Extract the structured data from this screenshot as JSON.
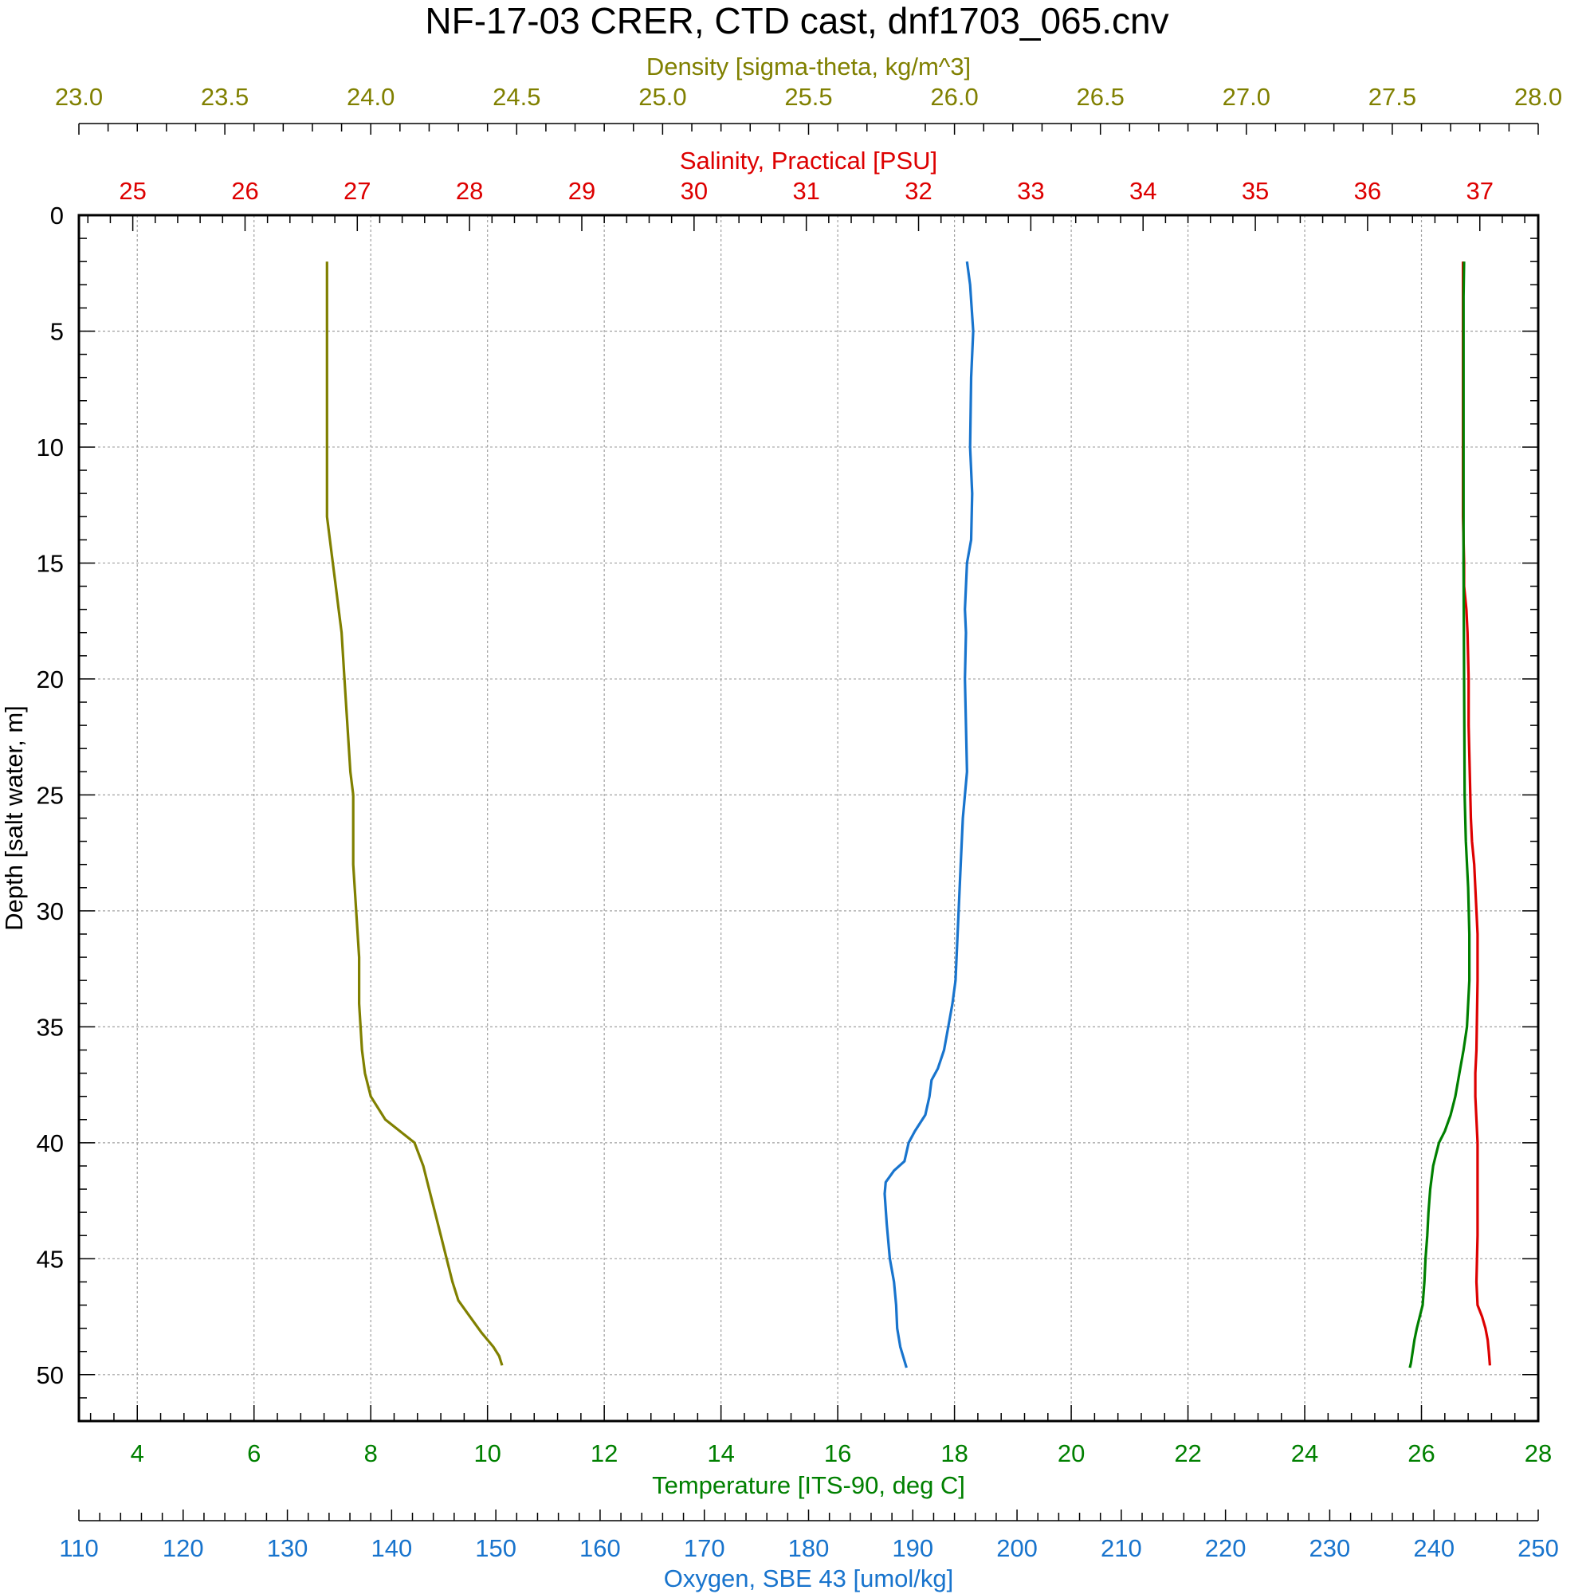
{
  "chart_data": {
    "type": "line",
    "title": "NF-17-03 CRER, CTD cast, dnf1703_065.cnv",
    "grid": true,
    "y_axis": {
      "label": "Depth [salt water, m]",
      "range": [
        0,
        52
      ],
      "inverted": true,
      "ticks": [
        0,
        5,
        10,
        15,
        20,
        25,
        30,
        35,
        40,
        45,
        50
      ]
    },
    "colors": {
      "density": "#808000",
      "salinity": "#dd0000",
      "temperature": "#008000",
      "oxygen": "#1874cd",
      "frame": "#000000",
      "grid": "#a0a0a0"
    },
    "axes": [
      {
        "key": "density",
        "label": "Density [sigma-theta, kg/m^3]",
        "position": "top-outer",
        "range": [
          23.0,
          28.0
        ],
        "ticks": [
          "23.0",
          "23.5",
          "24.0",
          "24.5",
          "25.0",
          "25.5",
          "26.0",
          "26.5",
          "27.0",
          "27.5",
          "28.0"
        ]
      },
      {
        "key": "salinity",
        "label": "Salinity, Practical [PSU]",
        "position": "top-inner",
        "range": [
          24.52,
          37.52
        ],
        "ticks": [
          "25",
          "26",
          "27",
          "28",
          "29",
          "30",
          "31",
          "32",
          "33",
          "34",
          "35",
          "36",
          "37"
        ]
      },
      {
        "key": "temperature",
        "label": "Temperature [ITS-90, deg C]",
        "position": "bottom-inner",
        "range": [
          3,
          28
        ],
        "ticks": [
          "4",
          "6",
          "8",
          "10",
          "12",
          "14",
          "16",
          "18",
          "20",
          "22",
          "24",
          "26",
          "28"
        ]
      },
      {
        "key": "oxygen",
        "label": "Oxygen, SBE 43 [umol/kg]",
        "position": "bottom-outer",
        "range": [
          110,
          250
        ],
        "ticks": [
          "110",
          "120",
          "130",
          "140",
          "150",
          "160",
          "170",
          "180",
          "190",
          "200",
          "210",
          "220",
          "230",
          "240",
          "250"
        ]
      }
    ],
    "series": [
      {
        "key": "density",
        "points": [
          [
            23.85,
            2
          ],
          [
            23.85,
            5
          ],
          [
            23.85,
            10
          ],
          [
            23.85,
            13
          ],
          [
            23.87,
            15
          ],
          [
            23.88,
            16
          ],
          [
            23.89,
            17
          ],
          [
            23.9,
            18
          ],
          [
            23.91,
            20
          ],
          [
            23.92,
            22
          ],
          [
            23.93,
            24
          ],
          [
            23.94,
            25
          ],
          [
            23.94,
            28
          ],
          [
            23.95,
            30
          ],
          [
            23.96,
            32
          ],
          [
            23.96,
            34
          ],
          [
            23.97,
            36
          ],
          [
            23.98,
            37
          ],
          [
            24.0,
            38
          ],
          [
            24.05,
            39
          ],
          [
            24.1,
            39.5
          ],
          [
            24.15,
            40
          ],
          [
            24.18,
            41
          ],
          [
            24.2,
            42
          ],
          [
            24.22,
            43
          ],
          [
            24.24,
            44
          ],
          [
            24.26,
            45
          ],
          [
            24.28,
            46
          ],
          [
            24.3,
            46.8
          ],
          [
            24.34,
            47.5
          ],
          [
            24.38,
            48.2
          ],
          [
            24.42,
            48.8
          ],
          [
            24.44,
            49.2
          ],
          [
            24.45,
            49.6
          ]
        ]
      },
      {
        "key": "salinity",
        "points": [
          [
            36.85,
            2
          ],
          [
            36.85,
            5
          ],
          [
            36.85,
            10
          ],
          [
            36.85,
            13
          ],
          [
            36.86,
            15
          ],
          [
            36.86,
            16
          ],
          [
            36.88,
            17
          ],
          [
            36.89,
            18
          ],
          [
            36.9,
            20
          ],
          [
            36.9,
            22
          ],
          [
            36.91,
            24
          ],
          [
            36.92,
            26
          ],
          [
            36.93,
            27
          ],
          [
            36.95,
            28
          ],
          [
            36.97,
            30
          ],
          [
            36.98,
            31
          ],
          [
            36.98,
            33
          ],
          [
            36.97,
            36
          ],
          [
            36.96,
            37
          ],
          [
            36.96,
            38
          ],
          [
            36.97,
            39
          ],
          [
            36.98,
            40
          ],
          [
            36.98,
            42
          ],
          [
            36.98,
            44
          ],
          [
            36.97,
            46
          ],
          [
            36.98,
            47
          ],
          [
            37.02,
            47.5
          ],
          [
            37.05,
            48
          ],
          [
            37.07,
            48.5
          ],
          [
            37.08,
            49
          ],
          [
            37.09,
            49.6
          ]
        ]
      },
      {
        "key": "temperature",
        "points": [
          [
            26.73,
            2
          ],
          [
            26.72,
            3.5
          ],
          [
            26.72,
            5
          ],
          [
            26.72,
            10
          ],
          [
            26.72,
            15
          ],
          [
            26.73,
            20
          ],
          [
            26.74,
            25
          ],
          [
            26.76,
            27
          ],
          [
            26.8,
            29
          ],
          [
            26.82,
            31
          ],
          [
            26.82,
            33
          ],
          [
            26.78,
            35
          ],
          [
            26.72,
            36
          ],
          [
            26.65,
            37
          ],
          [
            26.58,
            38
          ],
          [
            26.5,
            38.8
          ],
          [
            26.4,
            39.5
          ],
          [
            26.3,
            40
          ],
          [
            26.25,
            40.5
          ],
          [
            26.2,
            41
          ],
          [
            26.15,
            42
          ],
          [
            26.12,
            43
          ],
          [
            26.1,
            44
          ],
          [
            26.07,
            45
          ],
          [
            26.05,
            46
          ],
          [
            26.02,
            47
          ],
          [
            25.97,
            47.5
          ],
          [
            25.92,
            48
          ],
          [
            25.88,
            48.5
          ],
          [
            25.85,
            49
          ],
          [
            25.82,
            49.5
          ],
          [
            25.8,
            49.7
          ]
        ]
      },
      {
        "key": "oxygen",
        "points": [
          [
            195.2,
            2
          ],
          [
            195.5,
            3
          ],
          [
            195.8,
            5
          ],
          [
            195.6,
            7
          ],
          [
            195.5,
            10
          ],
          [
            195.7,
            12
          ],
          [
            195.6,
            14
          ],
          [
            195.2,
            15
          ],
          [
            195.0,
            17
          ],
          [
            195.1,
            18
          ],
          [
            195.0,
            20
          ],
          [
            195.1,
            22
          ],
          [
            195.2,
            24
          ],
          [
            194.8,
            26
          ],
          [
            194.6,
            28
          ],
          [
            194.4,
            30
          ],
          [
            194.2,
            32
          ],
          [
            194.1,
            33
          ],
          [
            193.8,
            34
          ],
          [
            193.4,
            35
          ],
          [
            193.0,
            36
          ],
          [
            192.4,
            36.8
          ],
          [
            191.8,
            37.3
          ],
          [
            191.6,
            38
          ],
          [
            191.2,
            38.8
          ],
          [
            190.2,
            39.5
          ],
          [
            189.6,
            40
          ],
          [
            189.2,
            40.8
          ],
          [
            188.2,
            41.2
          ],
          [
            187.4,
            41.7
          ],
          [
            187.3,
            42.2
          ],
          [
            187.5,
            43.5
          ],
          [
            187.8,
            45
          ],
          [
            188.2,
            46
          ],
          [
            188.4,
            47
          ],
          [
            188.5,
            48
          ],
          [
            188.8,
            48.8
          ],
          [
            189.2,
            49.4
          ],
          [
            189.4,
            49.7
          ]
        ]
      }
    ]
  }
}
